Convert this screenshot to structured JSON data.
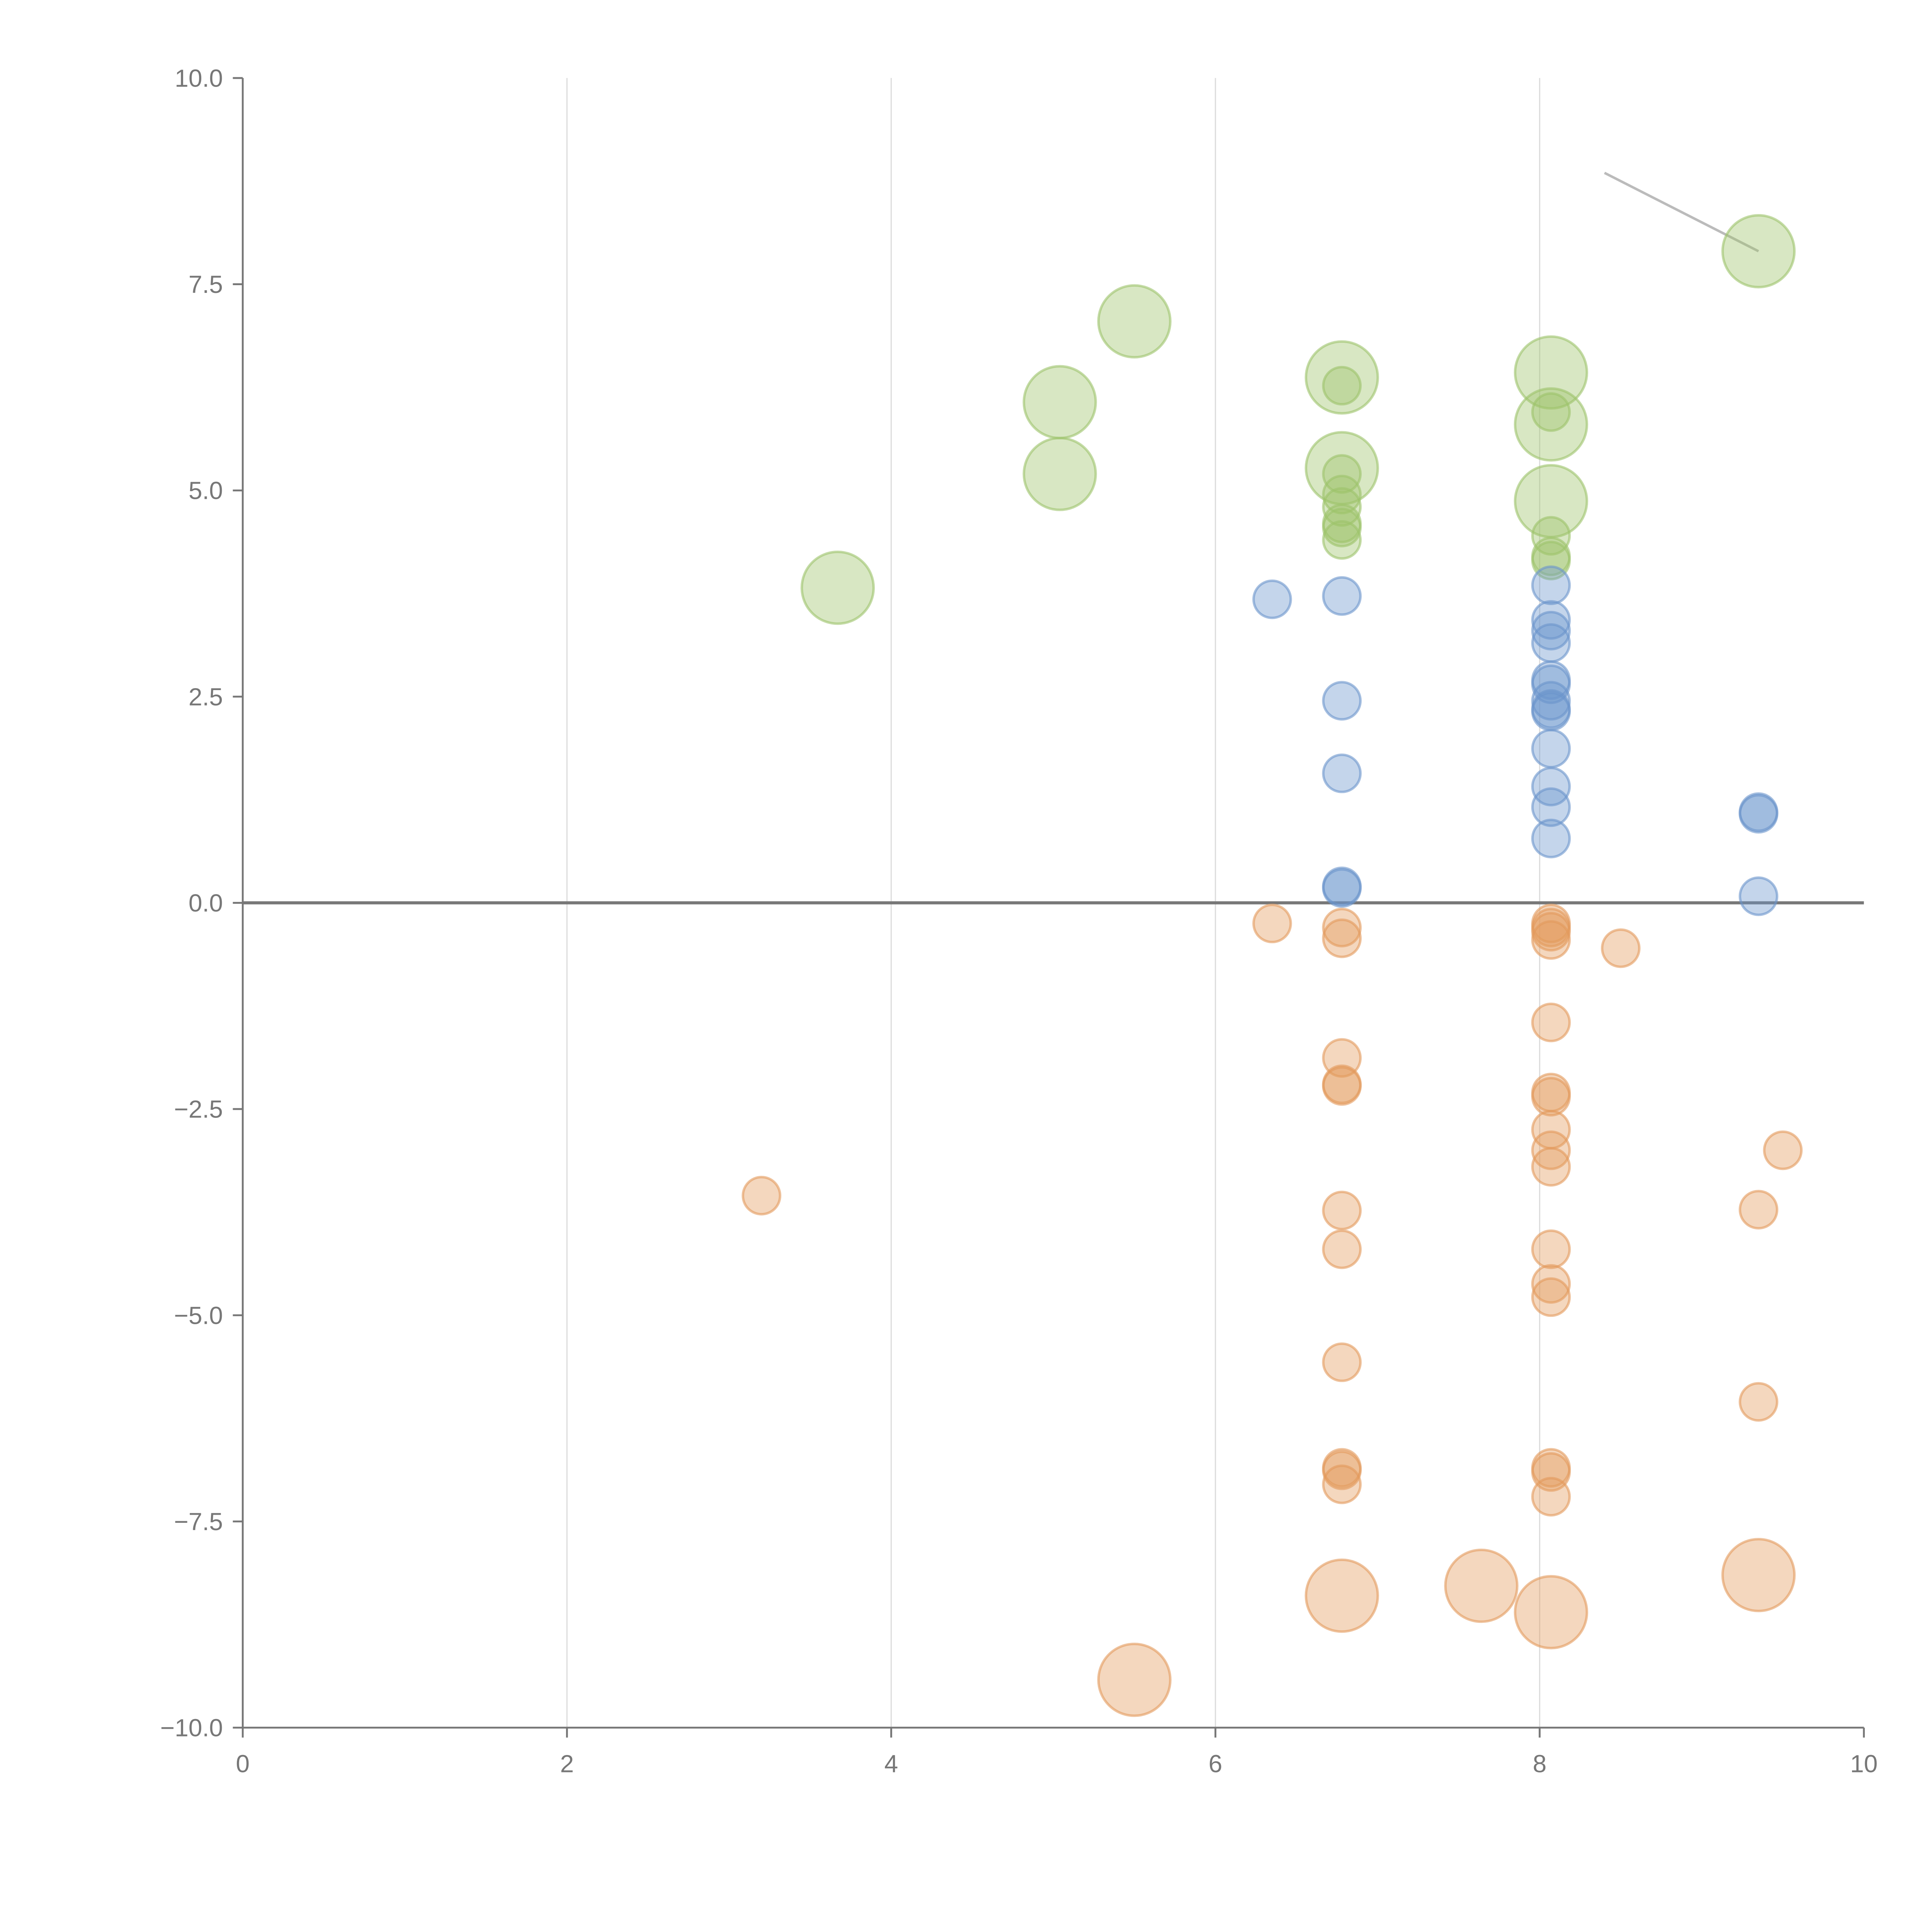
{
  "chart_data": {
    "type": "scatter",
    "title": "",
    "xlabel": "",
    "ylabel": "",
    "xlim": [
      0,
      10
    ],
    "ylim": [
      -10,
      10
    ],
    "grid": "vertical",
    "x_ticks": [
      "0",
      "2",
      "4",
      "6",
      "8",
      "10"
    ],
    "y_ticks": [
      "10.0",
      "7.5",
      "5.0",
      "2.5",
      "0.0",
      "−2.5",
      "−5.0",
      "−7.5",
      "−10.0"
    ],
    "colors": {
      "green": "#9dc36a",
      "blue": "#6b95cc",
      "orange": "#e39a5c",
      "axis": "#777777",
      "grid": "#dddddd"
    },
    "series": [
      {
        "name": "green",
        "color": "#9dc36a",
        "points": [
          [
            3.67,
            3.82,
            2
          ],
          [
            5.04,
            6.07,
            2
          ],
          [
            5.04,
            5.2,
            2
          ],
          [
            5.5,
            7.05,
            2
          ],
          [
            6.78,
            6.37,
            2
          ],
          [
            6.78,
            6.27,
            1
          ],
          [
            6.78,
            5.27,
            2
          ],
          [
            6.78,
            5.2,
            1
          ],
          [
            6.78,
            4.95,
            1
          ],
          [
            6.78,
            4.8,
            1
          ],
          [
            6.78,
            4.6,
            1
          ],
          [
            6.78,
            4.55,
            1
          ],
          [
            6.78,
            4.4,
            1
          ],
          [
            8.07,
            6.43,
            2
          ],
          [
            8.07,
            5.8,
            2
          ],
          [
            8.07,
            5.95,
            1
          ],
          [
            8.07,
            4.87,
            2
          ],
          [
            8.07,
            4.45,
            1
          ],
          [
            8.07,
            4.2,
            1
          ],
          [
            8.07,
            4.15,
            1
          ],
          [
            9.35,
            7.9,
            2
          ]
        ]
      },
      {
        "name": "blue",
        "color": "#6b95cc",
        "points": [
          [
            6.35,
            3.68,
            1
          ],
          [
            6.78,
            3.72,
            1
          ],
          [
            6.78,
            2.45,
            1
          ],
          [
            6.78,
            1.57,
            1
          ],
          [
            6.78,
            0.2,
            1
          ],
          [
            6.78,
            0.18,
            1
          ],
          [
            8.07,
            3.85,
            1
          ],
          [
            8.07,
            3.43,
            1
          ],
          [
            8.07,
            3.3,
            1
          ],
          [
            8.07,
            3.15,
            1
          ],
          [
            8.07,
            2.7,
            1
          ],
          [
            8.07,
            2.65,
            1
          ],
          [
            8.07,
            2.45,
            1
          ],
          [
            8.07,
            2.35,
            1
          ],
          [
            8.07,
            2.32,
            1
          ],
          [
            8.07,
            1.87,
            1
          ],
          [
            8.07,
            1.41,
            1
          ],
          [
            8.07,
            1.16,
            1
          ],
          [
            8.07,
            0.78,
            1
          ],
          [
            9.35,
            1.1,
            1
          ],
          [
            9.35,
            1.08,
            1
          ],
          [
            9.35,
            0.08,
            1
          ]
        ]
      },
      {
        "name": "orange",
        "color": "#e39a5c",
        "points": [
          [
            3.2,
            -3.55,
            1
          ],
          [
            6.35,
            -0.25,
            1
          ],
          [
            6.78,
            -0.3,
            1
          ],
          [
            6.78,
            -0.43,
            1
          ],
          [
            6.78,
            -1.88,
            1
          ],
          [
            6.78,
            -2.2,
            1
          ],
          [
            6.78,
            -2.22,
            1
          ],
          [
            6.78,
            -3.73,
            1
          ],
          [
            6.78,
            -4.2,
            1
          ],
          [
            6.78,
            -5.57,
            1
          ],
          [
            6.78,
            -6.85,
            1
          ],
          [
            6.78,
            -6.88,
            1
          ],
          [
            6.78,
            -7.05,
            1
          ],
          [
            8.07,
            -0.25,
            1
          ],
          [
            8.07,
            -0.3,
            1
          ],
          [
            8.07,
            -0.35,
            1
          ],
          [
            8.07,
            -0.45,
            1
          ],
          [
            8.07,
            -1.45,
            1
          ],
          [
            8.07,
            -2.3,
            1
          ],
          [
            8.07,
            -2.35,
            1
          ],
          [
            8.07,
            -2.75,
            1
          ],
          [
            8.07,
            -3.0,
            1
          ],
          [
            8.07,
            -3.2,
            1
          ],
          [
            8.07,
            -4.2,
            1
          ],
          [
            8.07,
            -4.62,
            1
          ],
          [
            8.07,
            -4.78,
            1
          ],
          [
            8.07,
            -6.85,
            1
          ],
          [
            8.07,
            -6.9,
            1
          ],
          [
            8.07,
            -7.2,
            1
          ],
          [
            8.5,
            -0.55,
            1
          ],
          [
            9.5,
            -3.0,
            1
          ],
          [
            9.35,
            -3.72,
            1
          ],
          [
            9.35,
            -6.05,
            1
          ],
          [
            5.5,
            -9.42,
            2
          ],
          [
            6.78,
            -8.4,
            2
          ],
          [
            7.64,
            -8.28,
            2
          ],
          [
            8.07,
            -8.6,
            2
          ],
          [
            9.35,
            -8.15,
            2
          ]
        ]
      }
    ],
    "annotations": [
      {
        "type": "leader-line",
        "from": [
          8.4,
          8.85
        ],
        "to": [
          9.35,
          7.9
        ]
      }
    ]
  }
}
